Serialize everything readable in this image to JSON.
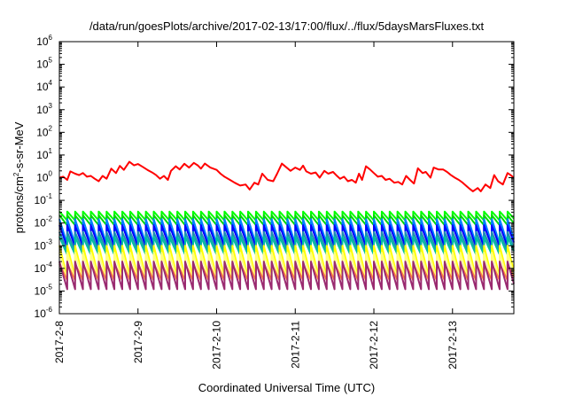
{
  "chart_data": {
    "type": "line",
    "title": "/data/run/goesPlots/archive/2017-02-13/17:00/flux/../flux/5daysMarsFluxes.txt",
    "xlabel": "Coordinated Universal Time (UTC)",
    "ylabel": {
      "prefix": "protons/cm",
      "sup": "2",
      "suffix": "-s-sr-MeV"
    },
    "y_scale": "log",
    "ylim": [
      1e-06,
      1000000.0
    ],
    "y_ticks": [
      {
        "value": -6,
        "base": "10",
        "exp": "-6"
      },
      {
        "value": -5,
        "base": "10",
        "exp": "-5"
      },
      {
        "value": -4,
        "base": "10",
        "exp": "-4"
      },
      {
        "value": -3,
        "base": "10",
        "exp": "-3"
      },
      {
        "value": -2,
        "base": "10",
        "exp": "-2"
      },
      {
        "value": -1,
        "base": "10",
        "exp": "-1"
      },
      {
        "value": 0,
        "base": "10",
        "exp": "0"
      },
      {
        "value": 1,
        "base": "10",
        "exp": "1"
      },
      {
        "value": 2,
        "base": "10",
        "exp": "2"
      },
      {
        "value": 3,
        "base": "10",
        "exp": "3"
      },
      {
        "value": 4,
        "base": "10",
        "exp": "4"
      },
      {
        "value": 5,
        "base": "10",
        "exp": "5"
      },
      {
        "value": 6,
        "base": "10",
        "exp": "6"
      }
    ],
    "xlim_days": [
      0,
      5.78
    ],
    "x_ticks": [
      {
        "day": 0,
        "label": "2017-2-8"
      },
      {
        "day": 1,
        "label": "2017-2-9"
      },
      {
        "day": 2,
        "label": "2017-2-10"
      },
      {
        "day": 3,
        "label": "2017-2-11"
      },
      {
        "day": 4,
        "label": "2017-2-12"
      },
      {
        "day": 5,
        "label": "2017-2-13"
      }
    ],
    "grid": false,
    "legend": "none",
    "sawtooth_period_days": 0.1,
    "series": [
      {
        "color": "#ff0000",
        "kind": "red",
        "points": [
          [
            0.0,
            1.0
          ],
          [
            0.05,
            1.1
          ],
          [
            0.1,
            0.8
          ],
          [
            0.14,
            1.9
          ],
          [
            0.2,
            1.5
          ],
          [
            0.25,
            1.3
          ],
          [
            0.3,
            1.6
          ],
          [
            0.35,
            1.1
          ],
          [
            0.4,
            1.2
          ],
          [
            0.45,
            0.9
          ],
          [
            0.5,
            0.7
          ],
          [
            0.55,
            1.2
          ],
          [
            0.6,
            0.9
          ],
          [
            0.66,
            2.5
          ],
          [
            0.72,
            1.6
          ],
          [
            0.77,
            3.3
          ],
          [
            0.82,
            2.2
          ],
          [
            0.89,
            5.0
          ],
          [
            0.95,
            3.5
          ],
          [
            1.0,
            4.0
          ],
          [
            1.06,
            3.0
          ],
          [
            1.12,
            2.2
          ],
          [
            1.18,
            1.7
          ],
          [
            1.23,
            1.3
          ],
          [
            1.28,
            0.9
          ],
          [
            1.33,
            1.2
          ],
          [
            1.38,
            0.8
          ],
          [
            1.42,
            2.0
          ],
          [
            1.48,
            3.2
          ],
          [
            1.53,
            2.3
          ],
          [
            1.59,
            4.1
          ],
          [
            1.65,
            2.8
          ],
          [
            1.71,
            4.5
          ],
          [
            1.76,
            3.5
          ],
          [
            1.8,
            2.5
          ],
          [
            1.85,
            4.2
          ],
          [
            1.92,
            2.8
          ],
          [
            2.0,
            2.2
          ],
          [
            2.05,
            1.5
          ],
          [
            2.1,
            1.1
          ],
          [
            2.17,
            0.8
          ],
          [
            2.23,
            0.6
          ],
          [
            2.3,
            0.45
          ],
          [
            2.37,
            0.5
          ],
          [
            2.42,
            0.3
          ],
          [
            2.48,
            0.6
          ],
          [
            2.53,
            0.5
          ],
          [
            2.58,
            1.5
          ],
          [
            2.65,
            0.8
          ],
          [
            2.72,
            0.7
          ],
          [
            2.77,
            1.5
          ],
          [
            2.83,
            4.2
          ],
          [
            2.88,
            3.0
          ],
          [
            2.94,
            2.0
          ],
          [
            3.0,
            2.8
          ],
          [
            3.06,
            2.2
          ],
          [
            3.1,
            3.4
          ],
          [
            3.14,
            1.9
          ],
          [
            3.2,
            1.5
          ],
          [
            3.26,
            1.7
          ],
          [
            3.31,
            1.0
          ],
          [
            3.37,
            2.0
          ],
          [
            3.42,
            1.5
          ],
          [
            3.48,
            1.8
          ],
          [
            3.52,
            1.3
          ],
          [
            3.57,
            0.9
          ],
          [
            3.62,
            1.1
          ],
          [
            3.67,
            0.7
          ],
          [
            3.72,
            0.8
          ],
          [
            3.77,
            0.6
          ],
          [
            3.81,
            1.5
          ],
          [
            3.85,
            0.8
          ],
          [
            3.9,
            3.2
          ],
          [
            3.95,
            2.3
          ],
          [
            4.0,
            1.6
          ],
          [
            4.05,
            1.1
          ],
          [
            4.1,
            1.2
          ],
          [
            4.15,
            0.8
          ],
          [
            4.2,
            0.9
          ],
          [
            4.26,
            0.6
          ],
          [
            4.31,
            0.65
          ],
          [
            4.36,
            0.5
          ],
          [
            4.41,
            1.2
          ],
          [
            4.46,
            0.8
          ],
          [
            4.51,
            0.55
          ],
          [
            4.56,
            2.6
          ],
          [
            4.62,
            1.6
          ],
          [
            4.66,
            1.8
          ],
          [
            4.72,
            1.0
          ],
          [
            4.76,
            2.8
          ],
          [
            4.82,
            2.3
          ],
          [
            4.88,
            2.3
          ],
          [
            4.93,
            1.8
          ],
          [
            4.98,
            1.3
          ],
          [
            5.03,
            1.0
          ],
          [
            5.08,
            0.8
          ],
          [
            5.13,
            0.6
          ],
          [
            5.18,
            0.42
          ],
          [
            5.22,
            0.32
          ],
          [
            5.26,
            0.25
          ],
          [
            5.32,
            0.35
          ],
          [
            5.36,
            0.25
          ],
          [
            5.42,
            0.5
          ],
          [
            5.48,
            0.35
          ],
          [
            5.53,
            1.3
          ],
          [
            5.58,
            0.7
          ],
          [
            5.64,
            0.5
          ],
          [
            5.7,
            1.6
          ],
          [
            5.74,
            1.3
          ],
          [
            5.78,
            1.0
          ]
        ]
      },
      {
        "color": "#00ff00",
        "kind": "saw",
        "peak": 0.032,
        "trough": 0.013
      },
      {
        "color": "#00d700",
        "kind": "saw",
        "peak": 0.022,
        "trough": 0.008
      },
      {
        "color": "#0080ff",
        "kind": "saw",
        "peak": 0.015,
        "trough": 0.0012
      },
      {
        "color": "#0000ff",
        "kind": "saw",
        "peak": 0.008,
        "trough": 0.0009
      },
      {
        "color": "#1e8fb0",
        "kind": "saw",
        "peak": 0.004,
        "trough": 0.0006
      },
      {
        "color": "#00c0a0",
        "kind": "saw",
        "peak": 0.0025,
        "trough": 0.0004
      },
      {
        "color": "#ffff00",
        "kind": "saw",
        "peak": 0.001,
        "trough": 4e-05
      },
      {
        "color": "#ffff80",
        "kind": "saw",
        "peak": 0.0005,
        "trough": 3e-05
      },
      {
        "color": "#ff8040",
        "kind": "saw",
        "peak": 0.00016,
        "trough": 3e-05
      },
      {
        "color": "#9a2a70",
        "kind": "saw",
        "peak": 0.0002,
        "trough": 1.2e-05
      }
    ]
  }
}
